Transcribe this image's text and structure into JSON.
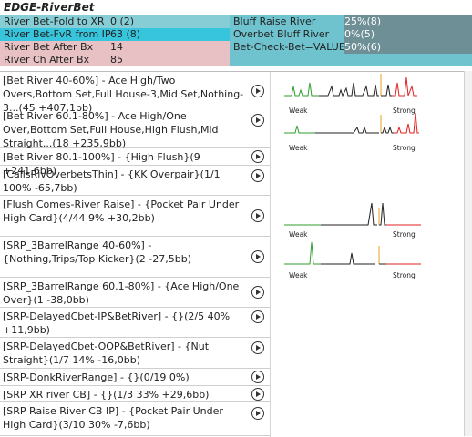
{
  "title": "EDGE-RiverBet",
  "stats": [
    {
      "label": "River Bet-Fold to XR",
      "value": "0 (2)"
    },
    {
      "label": "River Bet-FvR from IP",
      "value": "63 (8)"
    },
    {
      "label": "River Bet After Bx",
      "value": "14"
    },
    {
      "label": "River Ch After Bx",
      "value": "85"
    },
    {
      "label": "Bluff Raise River",
      "value": "25%(8)"
    },
    {
      "label": "Overbet Bluff River",
      "value": "0%(5)"
    },
    {
      "label": "Bet-Check-Bet=VALUE",
      "value": "50%(6)"
    }
  ],
  "hands": [
    {
      "text": "[Bet River 40-60%] - Ace High/Two Overs,Bottom Set,Full House-3,Mid Set,Nothing-3...(45 +407,1bb)"
    },
    {
      "text": "[Bet River 60.1-80%] - Ace High/One Over,Bottom Set,Full House,High Flush,Mid Straight...(18 +235,9bb)"
    },
    {
      "text": "[Bet River 80.1-100%] - {High Flush}(9 +241,6bb)"
    },
    {
      "text": "[CallsRivOverbetsThin] - {KK Overpair}(1/1 100% -65,7bb)"
    },
    {
      "text": "[Flush Comes-River Raise] - {Pocket Pair Under High Card}(4/44 9% +30,2bb)"
    },
    {
      "text": "[SRP_3BarrelRange 40-60%] - {Nothing,Trips/Top Kicker}(2 -27,5bb)"
    },
    {
      "text": "[SRP_3BarrelRange 60.1-80%] - {Ace High/One Over}(1 -38,0bb)"
    },
    {
      "text": "[SRP-DelayedCbet-IP&BetRiver] - {}(2/5 40% +11,9bb)"
    },
    {
      "text": "[SRP-DelayedCbet-OOP&BetRiver] - {Nut Straight}(1/7 14% -16,0bb)"
    },
    {
      "text": "[SRP-DonkRiverRange] - {}(0/19 0%)"
    },
    {
      "text": "[SRP XR river CB] - {}(1/3 33% +29,6bb)"
    },
    {
      "text": "[SRP Raise River CB IP] - {Pocket Pair Under High Card}(3/10 30% -7,6bb)"
    }
  ],
  "graphs": {
    "weak_label": "Weak",
    "strong_label": "Strong",
    "colors": {
      "weak": "#2e9e2e",
      "mid": "#222222",
      "marker": "#e8a020",
      "strong": "#e02020"
    }
  }
}
